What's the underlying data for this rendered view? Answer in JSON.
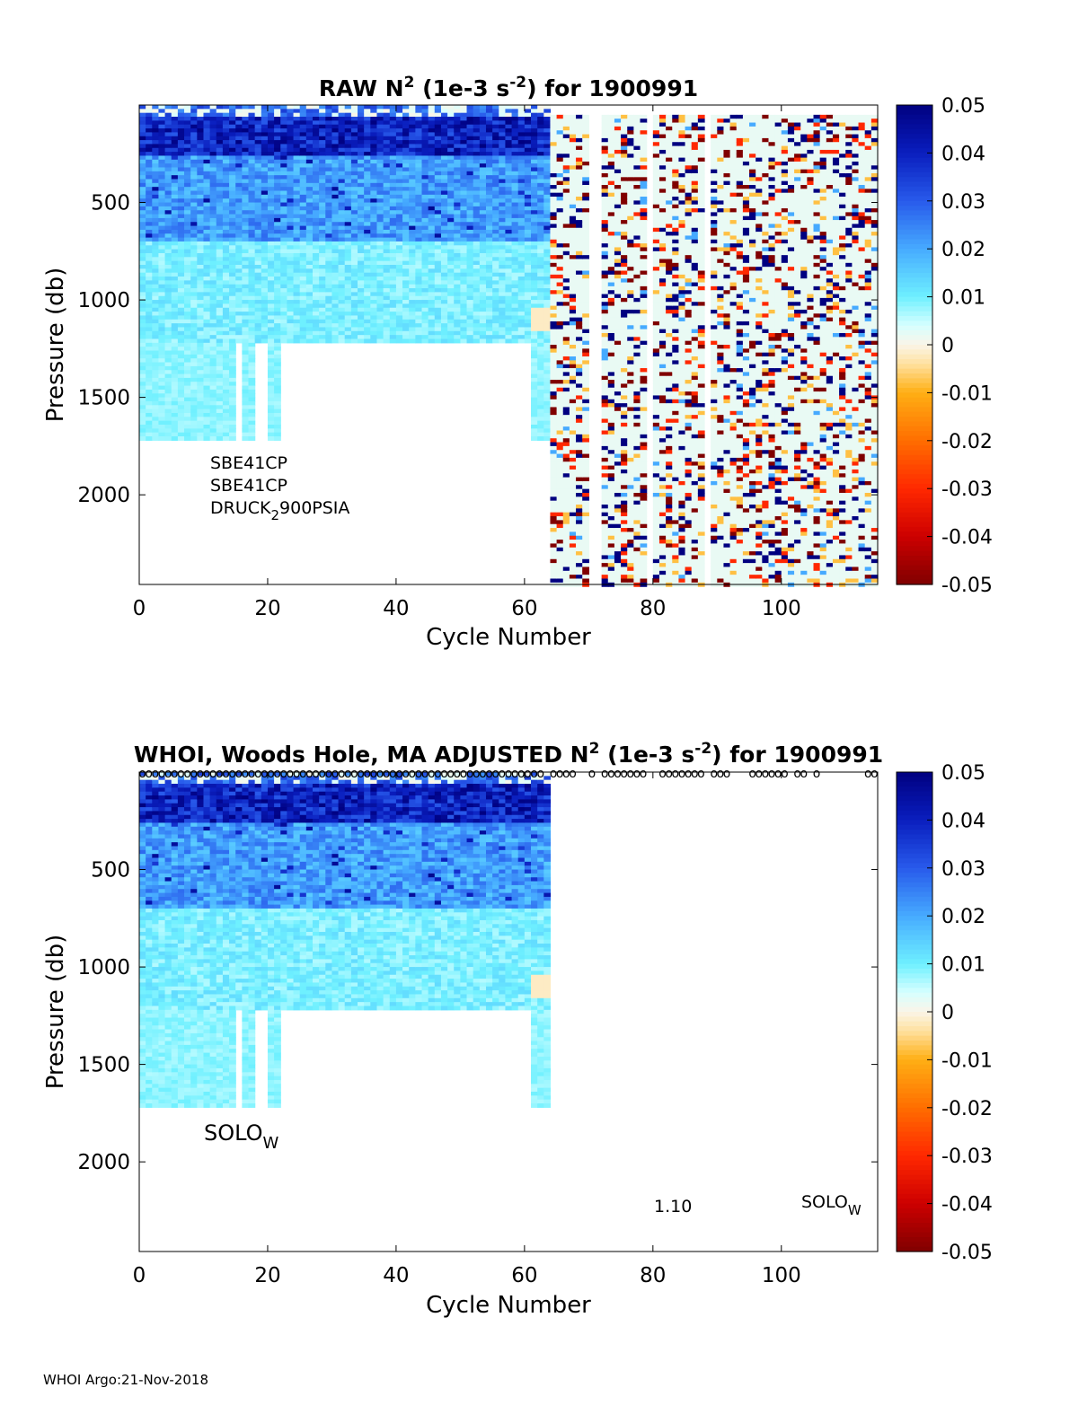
{
  "chart_data": [
    {
      "type": "heatmap",
      "panel": "raw",
      "title_prefix": "RAW N",
      "title_sup": "2",
      "title_units_a": " (1e-3 s",
      "title_units_sup": "-2",
      "title_units_b": ") for 1900991",
      "xlabel": "Cycle Number",
      "ylabel": "Pressure (db)",
      "xlim": [
        0,
        115
      ],
      "ylim": [
        2460,
        0
      ],
      "x_ticks": [
        "0",
        "20",
        "40",
        "60",
        "80",
        "100"
      ],
      "x_tick_values": [
        0,
        20,
        40,
        60,
        80,
        100
      ],
      "y_ticks": [
        "500",
        "1000",
        "1500",
        "2000"
      ],
      "y_tick_values": [
        500,
        1000,
        1500,
        2000
      ],
      "colorbar": {
        "clim": [
          -0.05,
          0.05
        ],
        "ticks": [
          "0.05",
          "0.04",
          "0.03",
          "0.02",
          "0.01",
          "0",
          "-0.01",
          "-0.02",
          "-0.03",
          "-0.04",
          "-0.05"
        ],
        "tick_values": [
          0.05,
          0.04,
          0.03,
          0.02,
          0.01,
          0,
          -0.01,
          -0.02,
          -0.03,
          -0.04,
          -0.05
        ]
      },
      "sensor_labels": [
        "SBE41CP",
        "SBE41CP"
      ],
      "sensor_label_druck_a": "DRUCK",
      "sensor_label_druck_sub": "2",
      "sensor_label_druck_b": "900PSIA",
      "data_summary": {
        "cycles_1_64": "surface 0-50 db mixed 0 to 0.01, 50-250 db strong 0.03-0.05, 250-700 db 0.015-0.03, 700-1220 db 0.005-0.015; cycles 1-22 extend to 1720 db at about 0.008",
        "cycles_65_115": "noisy profiles alternating between about 0.002 and extremes of +0.05 and -0.05 down to about 2460 db"
      }
    },
    {
      "type": "heatmap",
      "panel": "adjusted",
      "title_prefix": "WHOI, Woods Hole, MA  ADJUSTED N",
      "title_sup": "2",
      "title_units_a": " (1e-3 s",
      "title_units_sup": "-2",
      "title_units_b": ") for 1900991",
      "xlabel": "Cycle Number",
      "ylabel": "Pressure (db)",
      "xlim": [
        0,
        115
      ],
      "ylim": [
        2460,
        0
      ],
      "x_ticks": [
        "0",
        "20",
        "40",
        "60",
        "80",
        "100"
      ],
      "x_tick_values": [
        0,
        20,
        40,
        60,
        80,
        100
      ],
      "y_ticks": [
        "500",
        "1000",
        "1500",
        "2000"
      ],
      "y_tick_values": [
        500,
        1000,
        1500,
        2000
      ],
      "colorbar": {
        "clim": [
          -0.05,
          0.05
        ],
        "ticks": [
          "0.05",
          "0.04",
          "0.03",
          "0.02",
          "0.01",
          "0",
          "-0.01",
          "-0.02",
          "-0.03",
          "-0.04",
          "-0.05"
        ],
        "tick_values": [
          0.05,
          0.04,
          0.03,
          0.02,
          0.01,
          0,
          -0.01,
          -0.02,
          -0.03,
          -0.04,
          -0.05
        ]
      },
      "marker_glyph": "o",
      "marker_cycles": [
        1,
        2,
        3,
        4,
        5,
        6,
        7,
        8,
        9,
        10,
        11,
        12,
        13,
        14,
        15,
        16,
        17,
        18,
        19,
        20,
        21,
        22,
        23,
        24,
        25,
        26,
        27,
        28,
        29,
        30,
        31,
        32,
        33,
        34,
        35,
        36,
        37,
        38,
        39,
        40,
        41,
        42,
        43,
        44,
        45,
        46,
        47,
        48,
        49,
        50,
        51,
        52,
        53,
        54,
        55,
        56,
        57,
        58,
        59,
        60,
        61,
        62,
        63,
        65,
        66,
        67,
        68,
        71,
        73,
        74,
        75,
        76,
        77,
        78,
        79,
        82,
        83,
        84,
        85,
        86,
        87,
        88,
        90,
        91,
        92,
        96,
        97,
        98,
        99,
        100,
        101,
        103,
        104,
        106,
        114,
        115
      ],
      "label_left_a": "SOLO",
      "label_left_sub": "W",
      "label_version": "1.10",
      "label_right_a": "SOLO",
      "label_right_sub": "W",
      "data_summary": {
        "cycles_1_64": "same as raw panel; cycles 62-64 extend to 1720 db at about 0.005 with 0 to -0.002 near 1100 db",
        "cycles_65_115": "no adjusted data"
      }
    }
  ],
  "footer": {
    "text": "WHOI Argo:21-Nov-2018"
  }
}
